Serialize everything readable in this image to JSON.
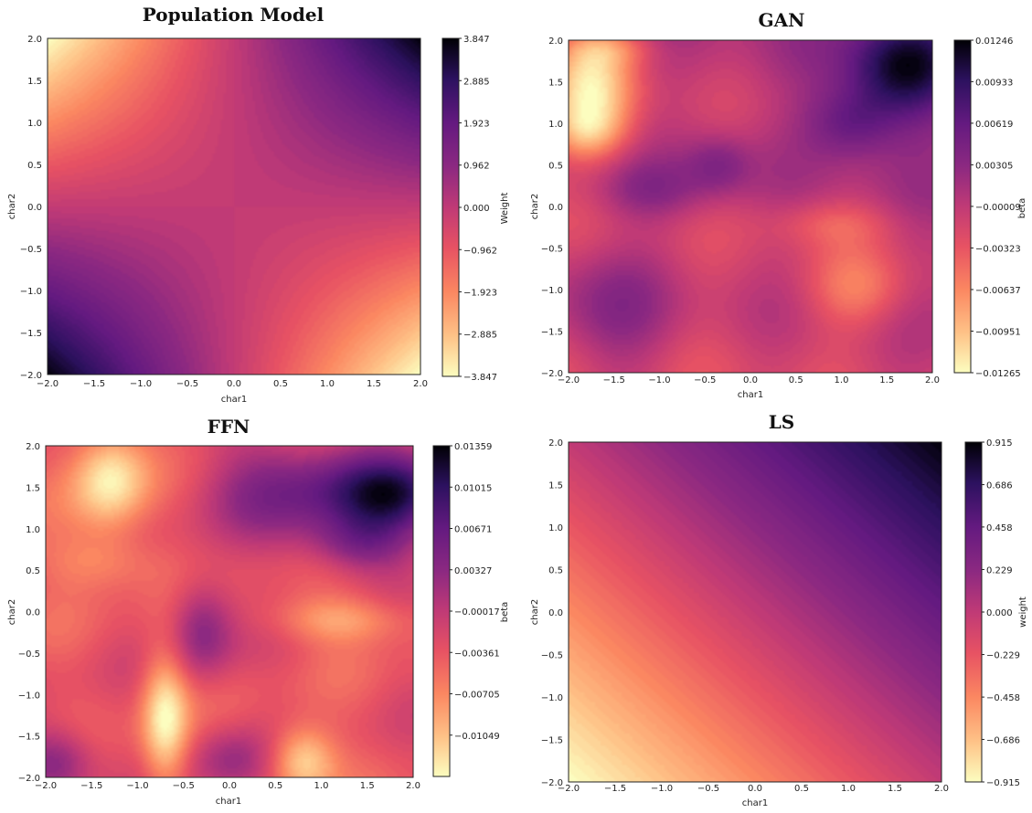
{
  "chart_data": [
    {
      "type": "heatmap",
      "title": "Population Model",
      "xlabel": "char1",
      "ylabel": "char2",
      "xlim": [
        -2.0,
        2.0
      ],
      "ylim": [
        -2.0,
        2.0
      ],
      "xticks": [
        "−2.0",
        "−1.5",
        "−1.0",
        "−0.5",
        "0.0",
        "0.5",
        "1.0",
        "1.5",
        "2.0"
      ],
      "yticks": [
        "2.0",
        "1.5",
        "1.0",
        "0.5",
        "0.0",
        "−0.5",
        "−1.0",
        "−1.5",
        "−2.0"
      ],
      "colorbar": {
        "label": "Weight",
        "range": [
          -3.847,
          3.847
        ],
        "ticks": [
          "3.847",
          "2.885",
          "1.923",
          "0.962",
          "0.000",
          "−0.962",
          "−1.923",
          "−2.885",
          "−3.847"
        ]
      },
      "colormap": "magma_r",
      "grid": false,
      "surface": "xy"
    },
    {
      "type": "heatmap",
      "title": "GAN",
      "xlabel": "char1",
      "ylabel": "char2",
      "xlim": [
        -2.0,
        2.0
      ],
      "ylim": [
        -2.0,
        2.0
      ],
      "xticks": [
        "−2.0",
        "−1.5",
        "−1.0",
        "−0.5",
        "0.0",
        "0.5",
        "1.0",
        "1.5",
        "2.0"
      ],
      "yticks": [
        "2.0",
        "1.5",
        "1.0",
        "0.5",
        "0.0",
        "−0.5",
        "−1.0",
        "−1.5",
        "−2.0"
      ],
      "colorbar": {
        "label": "beta",
        "range": [
          -0.01265,
          0.01246
        ],
        "ticks": [
          "0.01246",
          "0.00933",
          "0.00619",
          "0.00305",
          "−0.00009",
          "−0.00323",
          "−0.00637",
          "−0.00951",
          "−0.01265"
        ]
      },
      "colormap": "magma_r",
      "grid": false,
      "surface": "irregular"
    },
    {
      "type": "heatmap",
      "title": "FFN",
      "xlabel": "char1",
      "ylabel": "char2",
      "xlim": [
        -2.0,
        2.0
      ],
      "ylim": [
        -2.0,
        2.0
      ],
      "xticks": [
        "−2.0",
        "−1.5",
        "−1.0",
        "−0.5",
        "0.0",
        "0.5",
        "1.0",
        "1.5",
        "2.0"
      ],
      "yticks": [
        "2.0",
        "1.5",
        "1.0",
        "0.5",
        "0.0",
        "−0.5",
        "−1.0",
        "−1.5",
        "−2.0"
      ],
      "colorbar": {
        "label": "beta",
        "range": [
          -0.01393,
          0.01359
        ],
        "ticks": [
          "0.01359",
          "0.01015",
          "0.00671",
          "0.00327",
          "−0.00017",
          "−0.00361",
          "−0.00705",
          "−0.01049"
        ]
      },
      "colormap": "magma_r",
      "grid": false,
      "surface": "irregular"
    },
    {
      "type": "heatmap",
      "title": "LS",
      "xlabel": "char1",
      "ylabel": "char2",
      "xlim": [
        -2.0,
        2.0
      ],
      "ylim": [
        -2.0,
        2.0
      ],
      "xticks": [
        "−2.0",
        "−1.5",
        "−1.0",
        "−0.5",
        "0.0",
        "0.5",
        "1.0",
        "1.5",
        "2.0"
      ],
      "yticks": [
        "2.0",
        "1.5",
        "1.0",
        "0.5",
        "0.0",
        "−0.5",
        "−1.0",
        "−1.5",
        "−2.0"
      ],
      "colorbar": {
        "label": "weight",
        "range": [
          -0.915,
          0.915
        ],
        "ticks": [
          "0.915",
          "0.686",
          "0.458",
          "0.229",
          "0.000",
          "−0.229",
          "−0.458",
          "−0.686",
          "−0.915"
        ]
      },
      "colormap": "magma_r",
      "grid": false,
      "surface": "linear"
    }
  ]
}
